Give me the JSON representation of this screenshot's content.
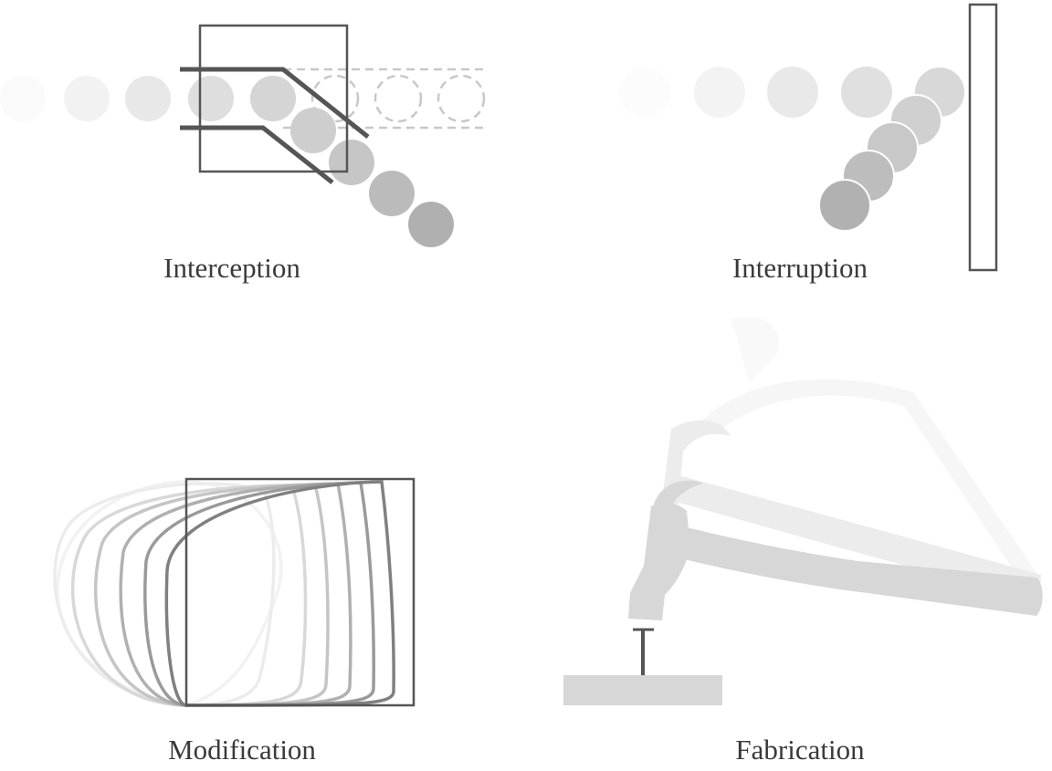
{
  "figure": {
    "panels": [
      {
        "id": "interception",
        "label": "Interception"
      },
      {
        "id": "interruption",
        "label": "Interruption"
      },
      {
        "id": "modification",
        "label": "Modification"
      },
      {
        "id": "fabrication",
        "label": "Fabrication"
      }
    ]
  },
  "colors": {
    "background": "#ffffff",
    "outline": "#555555",
    "dash": "#c8c8c8",
    "text": "#3a3a3a",
    "ball_faint": "#f4f4f4",
    "ball_light": "#e0e0e0",
    "ball_mid": "#c6c6c6",
    "ball_dark": "#ababab",
    "hammer": "#d7d7d7",
    "hammer_ghost": "#ececec"
  },
  "icons": [
    "ball-icon",
    "wall-icon",
    "hammer-icon",
    "nail-icon",
    "board-icon",
    "box-icon"
  ]
}
